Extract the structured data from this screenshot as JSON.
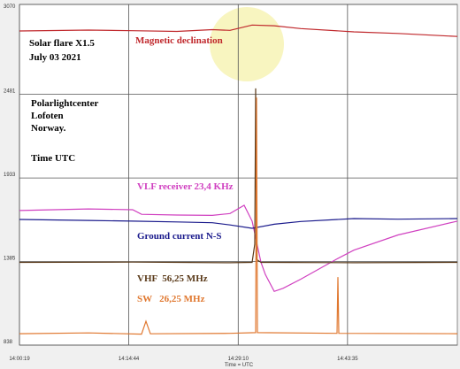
{
  "chart_data": {
    "type": "line",
    "annotations": [
      "Solar flare X1.5",
      "July 03 2021",
      "Polarlightcenter",
      "Lofoten",
      "Norway.",
      "Time UTC"
    ],
    "xlabel": "Time = UTC",
    "xlim": [
      "14:00:19",
      "14:58:04"
    ],
    "xticks": [
      "14:00:19",
      "14:14:44",
      "14:29:10",
      "14:43:35"
    ],
    "ylim": [
      838,
      3070
    ],
    "yticks": [
      838,
      1385,
      1933,
      2481,
      3070
    ],
    "grid": true,
    "series": [
      {
        "name": "Magnetic declination",
        "color": "#c0282c",
        "x": [
          "14:00:19",
          "14:09:25",
          "14:15:15",
          "14:21:05",
          "14:25:45",
          "14:28:05",
          "14:31:00",
          "14:33:55",
          "14:37:25",
          "14:44:25",
          "14:50:15",
          "14:58:04"
        ],
        "values": [
          2896,
          2902,
          2898,
          2893,
          2905,
          2900,
          2935,
          2930,
          2912,
          2890,
          2880,
          2860
        ]
      },
      {
        "name": "VLF receiver 23,4 KHz",
        "color": "#d040c0",
        "x": [
          "14:00:19",
          "14:09:25",
          "14:15:15",
          "14:16:25",
          "14:21:05",
          "14:25:45",
          "14:28:05",
          "14:29:57",
          "14:31:00",
          "14:32:10",
          "14:32:45",
          "14:33:55",
          "14:35:05",
          "14:37:25",
          "14:42:05",
          "14:44:25",
          "14:50:15",
          "14:58:04"
        ],
        "values": [
          1720,
          1730,
          1725,
          1695,
          1690,
          1688,
          1700,
          1754,
          1650,
          1380,
          1300,
          1190,
          1210,
          1270,
          1400,
          1460,
          1560,
          1650
        ]
      },
      {
        "name": "Ground current N-S",
        "color": "#1a1a8c",
        "x": [
          "14:00:19",
          "14:09:25",
          "14:15:15",
          "14:21:05",
          "14:25:45",
          "14:28:05",
          "14:31:00",
          "14:33:55",
          "14:37:25",
          "14:44:25",
          "14:50:15",
          "14:58:04"
        ],
        "values": [
          1661,
          1655,
          1650,
          1645,
          1640,
          1625,
          1603,
          1630,
          1648,
          1667,
          1663,
          1667
        ]
      },
      {
        "name": "VHF  56,25 MHz",
        "color": "#5a3a1a",
        "x": [
          "14:00:19",
          "14:15:15",
          "14:28:05",
          "14:31:00",
          "14:31:21",
          "14:31:28",
          "14:31:35",
          "14:32:10",
          "14:44:25",
          "14:58:04"
        ],
        "values": [
          1380,
          1382,
          1378,
          1380,
          1500,
          2520,
          1400,
          1380,
          1378,
          1380
        ]
      },
      {
        "name": "SW   26,25 MHz",
        "color": "#e07830",
        "x": [
          "14:00:19",
          "14:09:25",
          "14:16:25",
          "14:17:00",
          "14:17:35",
          "14:28:05",
          "14:31:28",
          "14:31:35",
          "14:31:42",
          "14:42:12",
          "14:42:19",
          "14:42:26",
          "14:58:04"
        ],
        "values": [
          913,
          918,
          910,
          994,
          912,
          915,
          920,
          2460,
          920,
          915,
          1284,
          915,
          913
        ]
      }
    ]
  }
}
